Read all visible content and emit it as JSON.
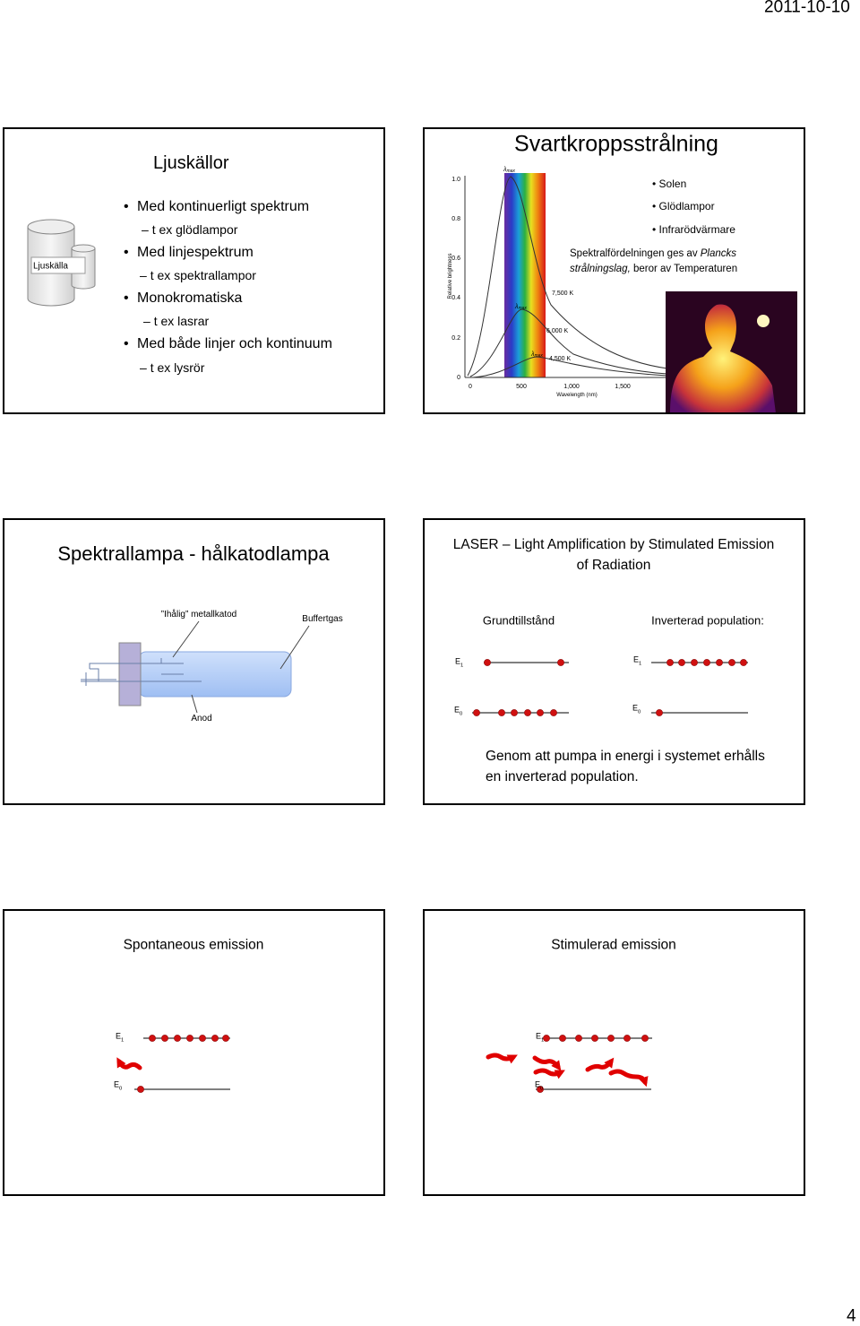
{
  "header": {
    "date": "2011-10-10"
  },
  "footer": {
    "page_number": "4"
  },
  "slides": [
    {
      "title": "Ljuskällor",
      "diagram_label": "Ljuskälla",
      "bullets": [
        {
          "text": "Med kontinuerligt spektrum",
          "sub": "t ex glödlampor"
        },
        {
          "text": "Med linjespektrum",
          "sub": "t ex spektrallampor"
        },
        {
          "text": "Monokromatiska",
          "sub": "t ex lasrar"
        },
        {
          "text": "Med både linjer och kontinuum",
          "sub": "t ex lysrör"
        }
      ]
    },
    {
      "title": "Svartkroppsstrålning",
      "bullets": [
        "Solen",
        "Glödlampor",
        "Infrarödvärmare"
      ],
      "note": {
        "before": "Spektralfördelningen ges av ",
        "italic": "Plancks strålningslag,",
        "after": " beror av Temperaturen"
      },
      "graph": {
        "y_axis_label": "Relative brightness",
        "x_axis_label": "Wavelength (nm)",
        "y_ticks": [
          "0",
          "0.2",
          "0.4",
          "0.6",
          "0.8",
          "1.0"
        ],
        "x_ticks": [
          "0",
          "500",
          "1,000",
          "1,500"
        ],
        "curve_labels": [
          "7,500 K",
          "6,000 K",
          "4,500 K"
        ],
        "peak_label": {
          "symbol": "λ",
          "sub": "max"
        }
      }
    },
    {
      "title": "Spektrallampa - hålkatodlampa",
      "labels": {
        "cathode": "”Ihålig” metallkatod",
        "gas": "Buffertgas",
        "anode": "Anod"
      }
    },
    {
      "title": "LASER – Light Amplification by Stimulated Emission of Radiation",
      "left_heading": "Grundtillstånd",
      "right_heading": "Inverterad population:",
      "levels": {
        "upper": {
          "symbol": "E",
          "index": "1"
        },
        "lower": {
          "symbol": "E",
          "index": "0"
        }
      },
      "body": "Genom att pumpa in energi i systemet erhålls en inverterad population."
    },
    {
      "title": "Spontaneous emission",
      "levels": {
        "upper": {
          "symbol": "E",
          "index": "1"
        },
        "lower": {
          "symbol": "E",
          "index": "0"
        }
      }
    },
    {
      "title": "Stimulerad emission",
      "levels": {
        "upper": {
          "symbol": "E",
          "index": "1"
        },
        "lower": {
          "symbol": "E",
          "index": "0"
        }
      }
    }
  ]
}
